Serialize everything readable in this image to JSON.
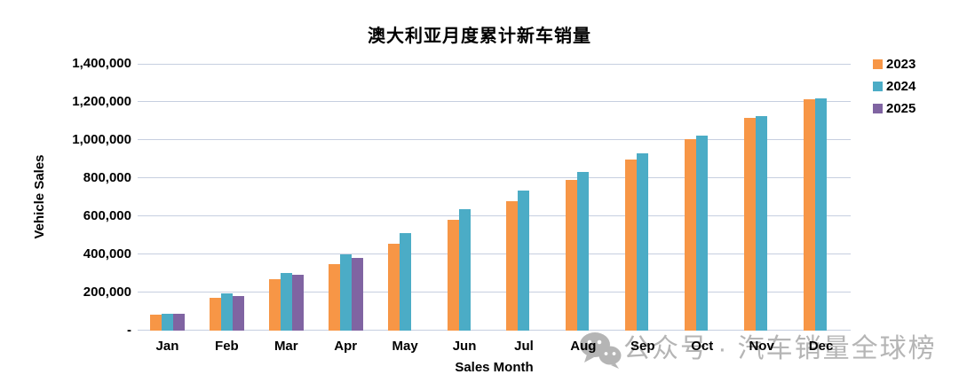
{
  "watermark": {
    "icon": "wechat-icon",
    "text": "公众号 · 汽车销量全球榜",
    "color": "#a9a9a9"
  },
  "chart_data": {
    "type": "bar",
    "title": "澳大利亚月度累计新车销量",
    "xlabel": "Sales Month",
    "ylabel": "Vehicle Sales",
    "categories": [
      "Jan",
      "Feb",
      "Mar",
      "Apr",
      "May",
      "Jun",
      "Jul",
      "Aug",
      "Sep",
      "Oct",
      "Nov",
      "Dec"
    ],
    "series": [
      {
        "name": "2023",
        "color": "#F79646",
        "values": [
          85000,
          171000,
          269000,
          351000,
          457000,
          583000,
          681000,
          790000,
          899000,
          1004000,
          1117000,
          1216000
        ]
      },
      {
        "name": "2024",
        "color": "#4BACC6",
        "values": [
          90000,
          195000,
          304000,
          402000,
          513000,
          637000,
          733000,
          831000,
          929000,
          1023000,
          1126000,
          1221000
        ]
      },
      {
        "name": "2025",
        "color": "#8064A2",
        "values": [
          87000,
          183000,
          291000,
          381000,
          null,
          null,
          null,
          null,
          null,
          null,
          null,
          null
        ]
      }
    ],
    "ylim": [
      0,
      1400000
    ],
    "ytick_step": 200000,
    "ytick_labels": [
      "-",
      "200,000",
      "400,000",
      "600,000",
      "800,000",
      "1,000,000",
      "1,200,000",
      "1,400,000"
    ],
    "grid": true,
    "gridline_color": "#C6CFE0",
    "legend_position": "top-right"
  }
}
